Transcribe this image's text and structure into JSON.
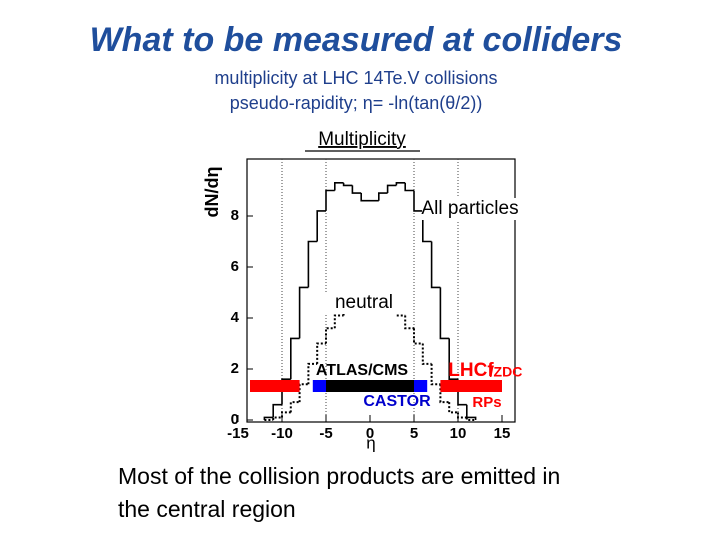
{
  "slide": {
    "title": "What to be measured at colliders",
    "subtitle_lines": [
      "multiplicity at LHC 14Te.V collisions",
      "pseudo-rapidity; η= -ln(tan(θ/2))"
    ],
    "heading": "Multiplicity",
    "caption_lines": [
      "Most of the collision products are emitted in",
      "the central region"
    ]
  },
  "chart_data": {
    "type": "step-histogram",
    "x_label": "η",
    "y_label": "dN/dη",
    "xlim": [
      -15,
      15
    ],
    "ylim": [
      0,
      10
    ],
    "xticks": [
      -15,
      -10,
      -5,
      0,
      5,
      10,
      15
    ],
    "yticks": [
      0,
      2,
      4,
      6,
      8
    ],
    "vlines": [
      -10,
      -5,
      5,
      10
    ],
    "bins": [
      -12,
      -11,
      -10,
      -9,
      -8,
      -7,
      -6,
      -5,
      -4,
      -3,
      -2,
      -1,
      0,
      1,
      2,
      3,
      4,
      5,
      6,
      7,
      8,
      9,
      10,
      11,
      12
    ],
    "series": [
      {
        "name": "All particles",
        "color": "#000000",
        "dash": false,
        "values": [
          0.1,
          0.6,
          1.6,
          3.2,
          5.2,
          7.0,
          8.2,
          9.0,
          9.3,
          9.2,
          8.9,
          8.6,
          8.6,
          8.9,
          9.2,
          9.3,
          9.0,
          8.2,
          7.0,
          5.2,
          3.2,
          1.6,
          0.6,
          0.1
        ]
      },
      {
        "name": "neutral",
        "color": "#000000",
        "dash": true,
        "values": [
          0,
          0.1,
          0.3,
          0.7,
          1.4,
          2.2,
          3.0,
          3.6,
          4.1,
          4.4,
          4.3,
          4.2,
          4.2,
          4.3,
          4.4,
          4.1,
          3.6,
          3.0,
          2.2,
          1.4,
          0.7,
          0.3,
          0.1,
          0
        ]
      }
    ],
    "coverage": [
      {
        "from": -15,
        "to": -8,
        "color": "#ff0000"
      },
      {
        "from": -6.5,
        "to": -5,
        "color": "#0000ff"
      },
      {
        "from": -5,
        "to": 5,
        "color": "#000000"
      },
      {
        "from": 5,
        "to": 6.5,
        "color": "#0000ff"
      },
      {
        "from": 8,
        "to": 15,
        "color": "#ff0000"
      }
    ],
    "detector_labels": [
      {
        "text": "ATLAS/CMS",
        "color": "#000000"
      },
      {
        "text": "CASTOR",
        "color": "#0000cc"
      },
      {
        "text": "LHCf",
        "color": "#ff0000"
      },
      {
        "text": "/ZDC",
        "color": "#ff0000"
      },
      {
        "text": "RPs",
        "color": "#ff0000"
      }
    ]
  }
}
